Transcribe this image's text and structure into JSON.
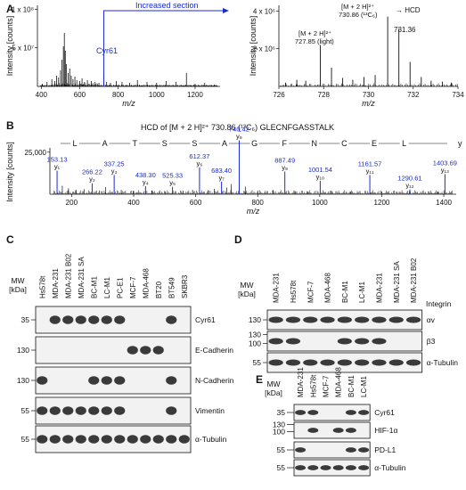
{
  "panel_labels": {
    "A": "A",
    "B": "B",
    "C": "C",
    "D": "D",
    "E": "E"
  },
  "chart_data": [
    {
      "type": "line",
      "panel": "A-left",
      "ylabel": "Intensity [counts]",
      "xlabel": "m/z",
      "xlim": [
        380,
        1330
      ],
      "ylim": [
        0,
        105000000.0
      ],
      "x_ticks": [
        "400",
        "600",
        "800",
        "1000",
        "1200"
      ],
      "y_ticks": [
        "5 x 10⁷",
        "1 x 10⁸"
      ],
      "annotations": {
        "cyr61": "Cyr61",
        "increased": "Increased section"
      },
      "peaks": [
        [
          405,
          3
        ],
        [
          430,
          5
        ],
        [
          455,
          8
        ],
        [
          470,
          6
        ],
        [
          480,
          12
        ],
        [
          490,
          10
        ],
        [
          500,
          18
        ],
        [
          508,
          30
        ],
        [
          515,
          45
        ],
        [
          520,
          60
        ],
        [
          525,
          40
        ],
        [
          530,
          25
        ],
        [
          540,
          15
        ],
        [
          548,
          20
        ],
        [
          556,
          12
        ],
        [
          565,
          8
        ],
        [
          575,
          11
        ],
        [
          585,
          7
        ],
        [
          600,
          6
        ],
        [
          612,
          9
        ],
        [
          625,
          5
        ],
        [
          640,
          7
        ],
        [
          660,
          6
        ],
        [
          680,
          5
        ],
        [
          700,
          4
        ],
        [
          725,
          14
        ],
        [
          740,
          5
        ],
        [
          760,
          4
        ],
        [
          790,
          6
        ],
        [
          820,
          5
        ],
        [
          860,
          4
        ],
        [
          900,
          7
        ],
        [
          950,
          5
        ],
        [
          1000,
          4
        ],
        [
          1050,
          6
        ],
        [
          1100,
          5
        ],
        [
          1155,
          15
        ],
        [
          1200,
          3
        ],
        [
          1250,
          4
        ],
        [
          1300,
          2
        ]
      ]
    },
    {
      "type": "line",
      "panel": "A-right",
      "ylabel": "Intensity [counts]",
      "xlabel": "m/z",
      "xlim": [
        726,
        734
      ],
      "ylim": [
        0,
        4300000.0
      ],
      "x_ticks": [
        "726",
        "728",
        "730",
        "732",
        "734"
      ],
      "y_ticks": [
        "2 x 10⁶",
        "4 x 10⁶"
      ],
      "annotations": {
        "light_l1": "[M + 2 H]²⁺",
        "light_l2": "727.85 (light)",
        "heavy_l1": "[M + 2 H]²⁺",
        "heavy_l2": "730.86 (¹³C₆)",
        "hcd": "→ HCD",
        "peak_731": "731.36"
      },
      "peaks": [
        [
          726.3,
          0.2
        ],
        [
          726.8,
          0.35
        ],
        [
          727.2,
          0.3
        ],
        [
          727.85,
          2.2
        ],
        [
          728.35,
          1.0
        ],
        [
          728.85,
          0.45
        ],
        [
          729.3,
          0.35
        ],
        [
          729.8,
          0.5
        ],
        [
          730.3,
          0.6
        ],
        [
          730.86,
          3.7
        ],
        [
          731.36,
          3.05
        ],
        [
          731.86,
          1.3
        ],
        [
          732.36,
          0.5
        ],
        [
          732.8,
          0.3
        ],
        [
          733.3,
          0.25
        ],
        [
          733.7,
          0.2
        ]
      ]
    },
    {
      "type": "line",
      "panel": "B",
      "title": "HCD of [M + 2 H]²⁺ 730.86 (¹³C₆) GLECNFGASSTALK",
      "ylabel": "Intensity [counts]",
      "xlabel": "m/z",
      "xlim": [
        130,
        1440
      ],
      "ylim": [
        0,
        36000
      ],
      "x_ticks": [
        "200",
        "400",
        "600",
        "800",
        "1000",
        "1200",
        "1400"
      ],
      "y_ticks": [
        "25,000"
      ],
      "sequence": [
        "L",
        "A",
        "T",
        "S",
        "S",
        "A",
        "G",
        "F",
        "N",
        "C",
        "E",
        "L"
      ],
      "ion_series": "y",
      "labeled_peaks": [
        {
          "mz": "153.13",
          "ion": "y₁",
          "x": 153.13,
          "y": 14000
        },
        {
          "mz": "266.22",
          "ion": "y₂",
          "x": 266.22,
          "y": 6500
        },
        {
          "mz": "337.25",
          "ion": "y₃",
          "x": 337.25,
          "y": 11500
        },
        {
          "mz": "438.30",
          "ion": "y₄",
          "x": 438.3,
          "y": 4800
        },
        {
          "mz": "525.33",
          "ion": "y₅",
          "x": 525.33,
          "y": 4400
        },
        {
          "mz": "612.37",
          "ion": "y₆",
          "x": 612.37,
          "y": 16000
        },
        {
          "mz": "683.40",
          "ion": "y₇",
          "x": 683.4,
          "y": 7500
        },
        {
          "mz": "740.42",
          "ion": "y₈",
          "x": 740.42,
          "y": 32000
        },
        {
          "mz": "887.49",
          "ion": "y₉",
          "x": 887.49,
          "y": 13500
        },
        {
          "mz": "1001.54",
          "ion": "y₁₀",
          "x": 1001.54,
          "y": 8000
        },
        {
          "mz": "1161.57",
          "ion": "y₁₁",
          "x": 1161.57,
          "y": 11500
        },
        {
          "mz": "1290.61",
          "ion": "y₁₂",
          "x": 1290.61,
          "y": 2800
        },
        {
          "mz": "1403.69",
          "ion": "y₁₃",
          "x": 1403.69,
          "y": 12000
        }
      ],
      "noise_peaks": [
        [
          170,
          5000
        ],
        [
          190,
          3500
        ],
        [
          215,
          2500
        ],
        [
          240,
          3000
        ],
        [
          290,
          2200
        ],
        [
          310,
          4200
        ],
        [
          360,
          2600
        ],
        [
          400,
          2100
        ],
        [
          460,
          2300
        ],
        [
          500,
          1900
        ],
        [
          560,
          2200
        ],
        [
          590,
          2600
        ],
        [
          640,
          2300
        ],
        [
          660,
          3200
        ],
        [
          700,
          4000
        ],
        [
          715,
          6000
        ],
        [
          760,
          4500
        ],
        [
          800,
          2200
        ],
        [
          850,
          2500
        ],
        [
          920,
          1900
        ],
        [
          960,
          1700
        ],
        [
          1040,
          1800
        ],
        [
          1100,
          1600
        ],
        [
          1200,
          1500
        ],
        [
          1250,
          1400
        ],
        [
          1340,
          1300
        ],
        [
          1380,
          1500
        ]
      ]
    }
  ],
  "blot_C": {
    "mw_label_1": "MW",
    "mw_label_2": "[kDa]",
    "lanes": [
      "Hs578t",
      "MDA-231",
      "MDA-231 B02",
      "MDA-231 SA",
      "BC-M1",
      "LC-M1",
      "PC-E1",
      "MCF-7",
      "MDA-468",
      "BT20",
      "BT549",
      "SKBR3"
    ],
    "rows": [
      {
        "label": "Cyr61",
        "mw": "35",
        "bands": [
          0,
          1,
          1,
          1,
          1,
          1,
          1,
          0,
          0,
          0,
          1,
          0
        ]
      },
      {
        "label": "E-Cadherin",
        "mw": "130",
        "bands": [
          0,
          0,
          0,
          0,
          0,
          0,
          0,
          1,
          1,
          1,
          0,
          0
        ]
      },
      {
        "label": "N-Cadherin",
        "mw": "130",
        "bands": [
          1,
          0,
          0,
          0,
          1,
          1,
          1,
          0,
          0,
          0,
          1,
          0
        ]
      },
      {
        "label": "Vimentin",
        "mw": "55",
        "bands": [
          1,
          1,
          1,
          1,
          1,
          1,
          1,
          0,
          0,
          0,
          1,
          0
        ]
      },
      {
        "label": "α-Tubulin",
        "mw": "55",
        "bands": [
          1,
          1,
          1,
          1,
          1,
          1,
          1,
          1,
          1,
          1,
          1,
          1
        ]
      }
    ]
  },
  "blot_D": {
    "mw_label_1": "MW",
    "mw_label_2": "[kDa]",
    "integrin_label": "Integrin",
    "lanes": [
      "MDA-231",
      "Hs578t",
      "MCF-7",
      "MDA-468",
      "BC-M1",
      "LC-M1",
      "MDA-231",
      "MDA-231 SA",
      "MDA-231 B02"
    ],
    "rows": [
      {
        "label": "αv",
        "mw": "130",
        "bands": [
          1,
          1,
          1,
          1,
          1,
          1,
          1,
          1,
          1
        ]
      },
      {
        "label": "β3",
        "mw_top": "130",
        "mw": "100",
        "bands": [
          1,
          1,
          0,
          0,
          1,
          1,
          1,
          0,
          0
        ]
      },
      {
        "label": "α-Tubulin",
        "mw": "55",
        "bands": [
          1,
          1,
          1,
          1,
          1,
          1,
          1,
          1,
          1
        ]
      }
    ]
  },
  "blot_E": {
    "mw_label_1": "MW",
    "mw_label_2": "[kDa]",
    "lanes": [
      "MDA-231",
      "Hs578t",
      "MCF-7",
      "MDA-468",
      "BC-M1",
      "LC-M1"
    ],
    "rows": [
      {
        "label": "Cyr61",
        "mw": "35",
        "bands": [
          1,
          1,
          0,
          0,
          1,
          1
        ]
      },
      {
        "label": "HIF-1α",
        "mw_top": "130",
        "mw": "100",
        "bands": [
          0,
          1,
          0,
          1,
          1,
          0
        ]
      },
      {
        "label": "PD-L1",
        "mw": "55",
        "bands": [
          1,
          0,
          0,
          0,
          1,
          1
        ]
      },
      {
        "label": "α-Tubulin",
        "mw": "55",
        "bands": [
          1,
          1,
          1,
          1,
          1,
          1
        ]
      }
    ]
  }
}
